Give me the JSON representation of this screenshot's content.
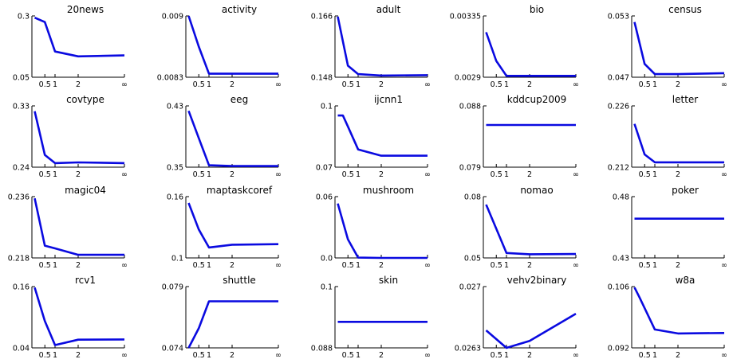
{
  "chart_data": [
    {
      "type": "line",
      "title": "20news",
      "x": [
        "0.25",
        "0.5",
        "1",
        "2",
        "∞"
      ],
      "values": [
        0.293,
        0.275,
        0.155,
        0.135,
        0.139
      ],
      "ylim": [
        0.05,
        0.3
      ],
      "yticks": [
        "0.05",
        "0.3"
      ],
      "xticks": [
        "0.5",
        "1",
        "2",
        "∞"
      ]
    },
    {
      "type": "line",
      "title": "activity",
      "x": [
        "0.25",
        "0.5",
        "1",
        "2",
        "∞"
      ],
      "values": [
        0.009,
        0.00865,
        0.00834,
        0.00834,
        0.00834
      ],
      "ylim": [
        0.0083,
        0.009
      ],
      "yticks": [
        "0.0083",
        "0.009"
      ],
      "xticks": [
        "0.5",
        "1",
        "2",
        "∞"
      ]
    },
    {
      "type": "line",
      "title": "adult",
      "x": [
        "0.25",
        "0.5",
        "1",
        "2",
        "∞"
      ],
      "values": [
        0.1658,
        0.1514,
        0.1489,
        0.1485,
        0.1486
      ],
      "ylim": [
        0.148,
        0.166
      ],
      "yticks": [
        "0.148",
        "0.166"
      ],
      "xticks": [
        "0.5",
        "1",
        "2",
        "∞"
      ]
    },
    {
      "type": "line",
      "title": "bio",
      "x": [
        "0.25",
        "0.5",
        "1",
        "2",
        "∞"
      ],
      "values": [
        0.00323,
        0.00302,
        0.00291,
        0.00291,
        0.00291
      ],
      "ylim": [
        0.0029,
        0.00335
      ],
      "yticks": [
        "0.0029",
        "0.00335"
      ],
      "xticks": [
        "0.5",
        "1",
        "2",
        "∞"
      ]
    },
    {
      "type": "line",
      "title": "census",
      "x": [
        "0.25",
        "0.5",
        "1",
        "2",
        "∞"
      ],
      "values": [
        0.0524,
        0.0483,
        0.0473,
        0.0473,
        0.0474
      ],
      "ylim": [
        0.047,
        0.053
      ],
      "yticks": [
        "0.047",
        "0.053"
      ],
      "xticks": [
        "0.5",
        "1",
        "2",
        "∞"
      ]
    },
    {
      "type": "line",
      "title": "covtype",
      "x": [
        "0.25",
        "0.5",
        "1",
        "2",
        "∞"
      ],
      "values": [
        0.322,
        0.258,
        0.246,
        0.247,
        0.246
      ],
      "ylim": [
        0.24,
        0.33
      ],
      "yticks": [
        "0.24",
        "0.33"
      ],
      "xticks": [
        "0.5",
        "1",
        "2",
        "∞"
      ]
    },
    {
      "type": "line",
      "title": "eeg",
      "x": [
        "0.25",
        "0.5",
        "1",
        "2",
        "∞"
      ],
      "values": [
        0.4235,
        0.388,
        0.3525,
        0.3515,
        0.3515
      ],
      "ylim": [
        0.35,
        0.43
      ],
      "yticks": [
        "0.35",
        "0.43"
      ],
      "xticks": [
        "0.5",
        "1",
        "2",
        "∞"
      ]
    },
    {
      "type": "line",
      "title": "ijcnn1",
      "x": [
        "0.25",
        "0.4",
        "0.5",
        "1",
        "2",
        "∞"
      ],
      "values": [
        0.0953,
        0.0953,
        0.0899,
        0.0787,
        0.0756,
        0.0756
      ],
      "ylim": [
        0.07,
        0.1
      ],
      "yticks": [
        "0.07",
        "0.1"
      ],
      "xticks": [
        "0.5",
        "1",
        "2",
        "∞"
      ]
    },
    {
      "type": "line",
      "title": "kddcup2009",
      "x": [
        "0.25",
        "∞"
      ],
      "values": [
        0.0852,
        0.0852
      ],
      "ylim": [
        0.079,
        0.088
      ],
      "yticks": [
        "0.079",
        "0.088"
      ],
      "xticks": [
        "0.5",
        "1",
        "2",
        "∞"
      ]
    },
    {
      "type": "line",
      "title": "letter",
      "x": [
        "0.25",
        "0.5",
        "1",
        "2",
        "∞"
      ],
      "values": [
        0.2219,
        0.2149,
        0.2131,
        0.2131,
        0.2131
      ],
      "ylim": [
        0.212,
        0.226
      ],
      "yticks": [
        "0.212",
        "0.226"
      ],
      "xticks": [
        "0.5",
        "1",
        "2",
        "∞"
      ]
    },
    {
      "type": "line",
      "title": "magic04",
      "x": [
        "0.25",
        "0.5",
        "1",
        "2",
        "∞"
      ],
      "values": [
        0.2355,
        0.2216,
        0.2208,
        0.2189,
        0.2189
      ],
      "ylim": [
        0.218,
        0.236
      ],
      "yticks": [
        "0.218",
        "0.236"
      ],
      "xticks": [
        "0.5",
        "1",
        "2",
        "∞"
      ]
    },
    {
      "type": "line",
      "title": "maptaskcoref",
      "x": [
        "0.25",
        "0.5",
        "1",
        "2",
        "∞"
      ],
      "values": [
        0.1538,
        0.1279,
        0.1102,
        0.1129,
        0.1135
      ],
      "ylim": [
        0.1,
        0.16
      ],
      "yticks": [
        "0.1",
        "0.16"
      ],
      "xticks": [
        "0.5",
        "1",
        "2",
        "∞"
      ]
    },
    {
      "type": "line",
      "title": "mushroom",
      "x": [
        "0.25",
        "0.5",
        "1",
        "2",
        "∞"
      ],
      "values": [
        0.0532,
        0.0182,
        0.0003,
        0.0,
        0.0
      ],
      "ylim": [
        0.0,
        0.06
      ],
      "yticks": [
        "0.0",
        "0.06"
      ],
      "xticks": [
        "0.5",
        "1",
        "2",
        "∞"
      ]
    },
    {
      "type": "line",
      "title": "nomao",
      "x": [
        "0.25",
        "0.5",
        "1",
        "2",
        "∞"
      ],
      "values": [
        0.0761,
        0.0643,
        0.0524,
        0.0518,
        0.0519
      ],
      "ylim": [
        0.05,
        0.08
      ],
      "yticks": [
        "0.05",
        "0.08"
      ],
      "xticks": [
        "0.5",
        "1",
        "2",
        "∞"
      ]
    },
    {
      "type": "line",
      "title": "poker",
      "x": [
        "0.25",
        "∞"
      ],
      "values": [
        0.462,
        0.462
      ],
      "ylim": [
        0.43,
        0.48
      ],
      "yticks": [
        "0.43",
        "0.48"
      ],
      "xticks": [
        "0.5",
        "1",
        "2",
        "∞"
      ]
    },
    {
      "type": "line",
      "title": "rcv1",
      "x": [
        "0.25",
        "0.5",
        "1",
        "2",
        "∞"
      ],
      "values": [
        0.158,
        0.0925,
        0.0455,
        0.056,
        0.0565
      ],
      "ylim": [
        0.04,
        0.16
      ],
      "yticks": [
        "0.04",
        "0.16"
      ],
      "xticks": [
        "0.5",
        "1",
        "2",
        "∞"
      ]
    },
    {
      "type": "line",
      "title": "shuttle",
      "x": [
        "0.25",
        "0.5",
        "1",
        "2",
        "∞"
      ],
      "values": [
        0.074,
        0.0756,
        0.0778,
        0.0778,
        0.0778
      ],
      "ylim": [
        0.074,
        0.079
      ],
      "yticks": [
        "0.074",
        "0.079"
      ],
      "xticks": [
        "0.5",
        "1",
        "2",
        "∞"
      ]
    },
    {
      "type": "line",
      "title": "skin",
      "x": [
        "0.25",
        "∞"
      ],
      "values": [
        0.0931,
        0.0931
      ],
      "ylim": [
        0.088,
        0.1
      ],
      "yticks": [
        "0.088",
        "0.1"
      ],
      "xticks": [
        "0.5",
        "1",
        "2",
        "∞"
      ]
    },
    {
      "type": "line",
      "title": "vehv2binary",
      "x": [
        "0.25",
        "1",
        "2",
        "∞"
      ],
      "values": [
        0.0265,
        0.0263,
        0.02638,
        0.02669
      ],
      "ylim": [
        0.0263,
        0.027
      ],
      "yticks": [
        "0.0263",
        "0.027"
      ],
      "xticks": [
        "0.5",
        "1",
        "2",
        "∞"
      ]
    },
    {
      "type": "line",
      "title": "w8a",
      "x": [
        "0.25",
        "0.4",
        "1",
        "2",
        "∞"
      ],
      "values": [
        0.1058,
        0.1035,
        0.0962,
        0.0953,
        0.0954
      ],
      "ylim": [
        0.092,
        0.106
      ],
      "yticks": [
        "0.092",
        "0.106"
      ],
      "xticks": [
        "0.5",
        "1",
        "2",
        "∞"
      ]
    }
  ]
}
